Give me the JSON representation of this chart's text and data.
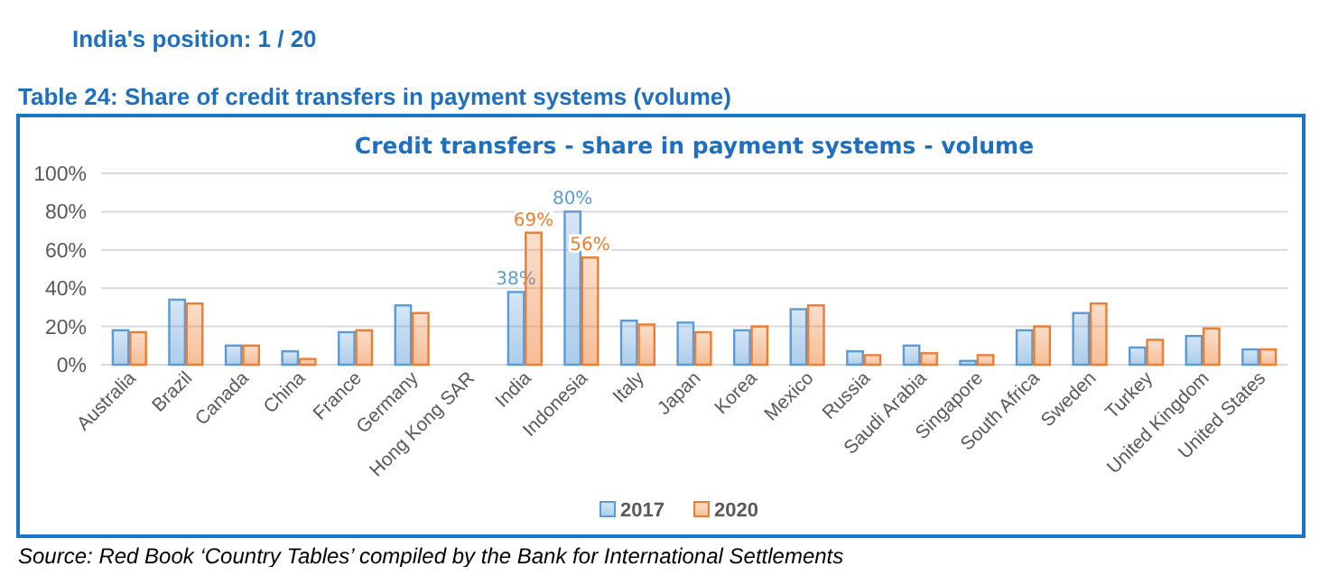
{
  "chart_data": {
    "type": "bar",
    "title": "Credit transfers - share in payment systems - volume",
    "annotations": [
      "India's position: 1 / 20",
      "Table 24: Share of credit transfers in payment systems (volume)",
      "Source: Red Book ‘Country Tables’ compiled by the Bank for International Settlements"
    ],
    "categories": [
      "Australia",
      "Brazil",
      "Canada",
      "China",
      "France",
      "Germany",
      "Hong Kong SAR",
      "India",
      "Indonesia",
      "Italy",
      "Japan",
      "Korea",
      "Mexico",
      "Russia",
      "Saudi Arabia",
      "Singapore",
      "South Africa",
      "Sweden",
      "Turkey",
      "United Kingdom",
      "United States"
    ],
    "series": [
      {
        "name": "2017",
        "color": "#5b9bd5",
        "values": [
          18,
          34,
          10,
          7,
          17,
          31,
          null,
          38,
          80,
          23,
          22,
          18,
          29,
          7,
          10,
          2,
          18,
          27,
          9,
          15,
          8
        ],
        "value_labels": [
          null,
          null,
          null,
          null,
          null,
          null,
          null,
          "38%",
          "80%",
          null,
          null,
          null,
          null,
          null,
          null,
          null,
          null,
          null,
          null,
          null,
          null
        ]
      },
      {
        "name": "2020",
        "color": "#ed7d31",
        "values": [
          17,
          32,
          10,
          3,
          18,
          27,
          null,
          69,
          56,
          21,
          17,
          20,
          31,
          5,
          6,
          5,
          20,
          32,
          13,
          19,
          8
        ],
        "value_labels": [
          null,
          null,
          null,
          null,
          null,
          null,
          null,
          "69%",
          "56%",
          null,
          null,
          null,
          null,
          null,
          null,
          null,
          null,
          null,
          null,
          null,
          null
        ]
      }
    ],
    "ylim": [
      0,
      100
    ],
    "yticks": [
      {
        "value": 0,
        "label": "0%"
      },
      {
        "value": 20,
        "label": "20%"
      },
      {
        "value": 40,
        "label": "40%"
      },
      {
        "value": 60,
        "label": "60%"
      },
      {
        "value": 80,
        "label": "80%"
      },
      {
        "value": 100,
        "label": "100%"
      }
    ],
    "grid": "y",
    "legend": "bottom"
  }
}
